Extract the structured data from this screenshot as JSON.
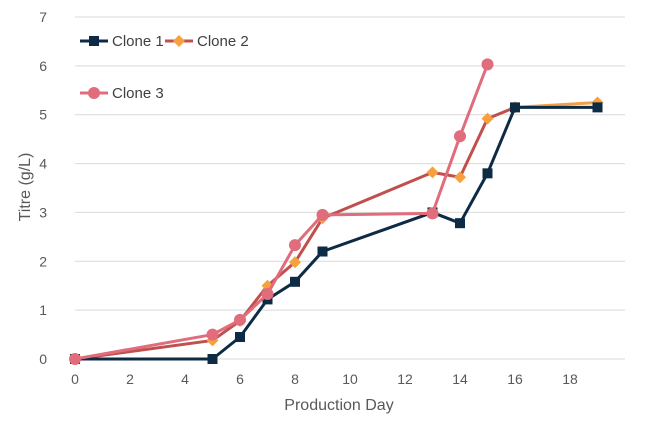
{
  "chart_data": {
    "type": "line",
    "title": "",
    "xlabel": "Production Day",
    "ylabel": "Titre (g/L)",
    "xlim": [
      0,
      20
    ],
    "ylim": [
      0,
      7
    ],
    "xticks": [
      0,
      2,
      4,
      6,
      8,
      10,
      12,
      14,
      16,
      18
    ],
    "yticks": [
      0,
      1,
      2,
      3,
      4,
      5,
      6,
      7
    ],
    "grid": "horizontal",
    "legend_position": "top-left",
    "series": [
      {
        "name": "Clone 1",
        "color": "#0d2b45",
        "marker": "square",
        "points": [
          [
            0,
            0
          ],
          [
            5,
            0
          ],
          [
            6,
            0.45
          ],
          [
            7,
            1.22
          ],
          [
            8,
            1.58
          ],
          [
            9,
            2.2
          ],
          [
            13,
            3.0
          ],
          [
            14,
            2.78
          ],
          [
            15,
            3.8
          ],
          [
            16,
            5.15
          ],
          [
            19,
            5.15
          ]
        ]
      },
      {
        "name": "Clone 2",
        "color": "#c0504d",
        "line_color_tail": "#f0a049",
        "marker_color": "#f7a13d",
        "marker": "diamond",
        "points": [
          [
            0,
            0
          ],
          [
            5,
            0.38
          ],
          [
            6,
            0.78
          ],
          [
            7,
            1.5
          ],
          [
            8,
            1.98
          ],
          [
            9,
            2.88
          ],
          [
            13,
            3.82
          ],
          [
            14,
            3.72
          ],
          [
            15,
            4.92
          ],
          [
            16,
            5.15
          ],
          [
            19,
            5.25
          ]
        ]
      },
      {
        "name": "Clone 3",
        "color": "#e06c7c",
        "marker": "circle",
        "points": [
          [
            0,
            0
          ],
          [
            5,
            0.5
          ],
          [
            6,
            0.8
          ],
          [
            7,
            1.33
          ],
          [
            8,
            2.33
          ],
          [
            9,
            2.95
          ],
          [
            13,
            2.98
          ],
          [
            14,
            4.56
          ],
          [
            15,
            6.03
          ]
        ]
      }
    ]
  }
}
